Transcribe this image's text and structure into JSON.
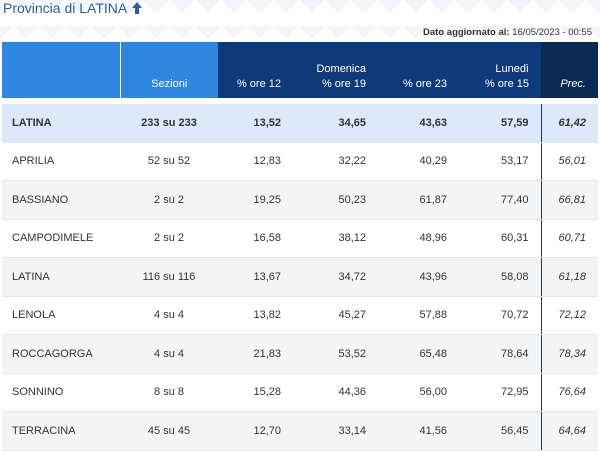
{
  "header": {
    "title": "Provincia di LATINA",
    "updated_label": "Dato aggiornato al:",
    "updated_value": "16/05/2023 - 00:55"
  },
  "columns": {
    "sezioni": "Sezioni",
    "group_domenica": "Domenica",
    "group_lunedi": "Lunedì",
    "ore12": "% ore 12",
    "ore19": "% ore 19",
    "ore23": "% ore 23",
    "ore15": "% ore 15",
    "prec": "Prec."
  },
  "total": {
    "name": "LATINA",
    "sez": "233 su 233",
    "o12": "13,52",
    "o19": "34,65",
    "o23": "43,63",
    "o15": "57,59",
    "prec": "61,42"
  },
  "rows": [
    {
      "name": "APRILIA",
      "sez": "52 su 52",
      "o12": "12,83",
      "o19": "32,22",
      "o23": "40,29",
      "o15": "53,17",
      "prec": "56,01"
    },
    {
      "name": "BASSIANO",
      "sez": "2 su 2",
      "o12": "19,25",
      "o19": "50,23",
      "o23": "61,87",
      "o15": "77,40",
      "prec": "66,81"
    },
    {
      "name": "CAMPODIMELE",
      "sez": "2 su 2",
      "o12": "16,58",
      "o19": "38,12",
      "o23": "48,96",
      "o15": "60,31",
      "prec": "60,71"
    },
    {
      "name": "LATINA",
      "sez": "116 su 116",
      "o12": "13,67",
      "o19": "34,72",
      "o23": "43,96",
      "o15": "58,08",
      "prec": "61,18"
    },
    {
      "name": "LENOLA",
      "sez": "4 su 4",
      "o12": "13,82",
      "o19": "45,27",
      "o23": "57,88",
      "o15": "70,72",
      "prec": "72,12"
    },
    {
      "name": "ROCCAGORGA",
      "sez": "4 su 4",
      "o12": "21,83",
      "o19": "53,52",
      "o23": "65,48",
      "o15": "78,64",
      "prec": "78,34"
    },
    {
      "name": "SONNINO",
      "sez": "8 su 8",
      "o12": "15,28",
      "o19": "44,36",
      "o23": "56,00",
      "o15": "72,95",
      "prec": "76,64"
    },
    {
      "name": "TERRACINA",
      "sez": "45 su 45",
      "o12": "12,70",
      "o19": "33,14",
      "o23": "41,56",
      "o15": "56,45",
      "prec": "64,64"
    }
  ],
  "icons": {
    "title_arrow": "arrow-up-icon"
  },
  "colors": {
    "accent": "#2e86de",
    "header_dark": "#0e3a7a",
    "prec_dark": "#0a2a55",
    "total_bg": "#dde9f9"
  }
}
